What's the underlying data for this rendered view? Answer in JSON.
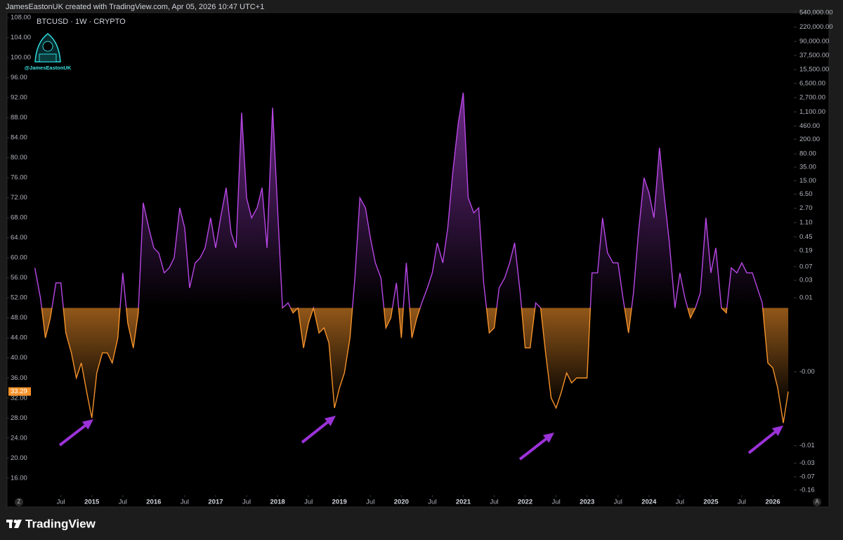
{
  "ui": {
    "header": "JamesEastonUK created with TradingView.com, Apr 05, 2026 10:47 UTC+1",
    "brand": "TradingView",
    "watermark": "@JamesEastonUK",
    "scale_buttons": [
      "Z",
      "A"
    ]
  },
  "chart_data": {
    "type": "line",
    "title": "BTCUSD · 1W · CRYPTO",
    "x": [
      2014.08,
      2014.17,
      2014.25,
      2014.33,
      2014.42,
      2014.5,
      2014.58,
      2014.67,
      2014.75,
      2014.83,
      2014.92,
      2015.0,
      2015.08,
      2015.17,
      2015.25,
      2015.33,
      2015.42,
      2015.5,
      2015.58,
      2015.67,
      2015.75,
      2015.83,
      2015.92,
      2016.0,
      2016.08,
      2016.17,
      2016.25,
      2016.33,
      2016.42,
      2016.5,
      2016.58,
      2016.67,
      2016.75,
      2016.83,
      2016.92,
      2017.0,
      2017.08,
      2017.17,
      2017.25,
      2017.33,
      2017.42,
      2017.5,
      2017.58,
      2017.67,
      2017.75,
      2017.83,
      2017.92,
      2018.0,
      2018.08,
      2018.17,
      2018.25,
      2018.33,
      2018.42,
      2018.5,
      2018.58,
      2018.67,
      2018.75,
      2018.83,
      2018.92,
      2019.0,
      2019.08,
      2019.17,
      2019.25,
      2019.33,
      2019.42,
      2019.5,
      2019.58,
      2019.67,
      2019.75,
      2019.83,
      2019.92,
      2020.0,
      2020.08,
      2020.17,
      2020.25,
      2020.33,
      2020.42,
      2020.5,
      2020.58,
      2020.67,
      2020.75,
      2020.83,
      2020.92,
      2021.0,
      2021.08,
      2021.17,
      2021.25,
      2021.33,
      2021.42,
      2021.5,
      2021.58,
      2021.67,
      2021.75,
      2021.83,
      2021.92,
      2022.0,
      2022.08,
      2022.17,
      2022.25,
      2022.33,
      2022.42,
      2022.5,
      2022.58,
      2022.67,
      2022.75,
      2022.83,
      2022.92,
      2023.0,
      2023.08,
      2023.17,
      2023.25,
      2023.33,
      2023.42,
      2023.5,
      2023.58,
      2023.67,
      2023.75,
      2023.83,
      2023.92,
      2024.0,
      2024.08,
      2024.17,
      2024.25,
      2024.33,
      2024.42,
      2024.5,
      2024.58,
      2024.67,
      2024.75,
      2024.83,
      2024.92,
      2025.0,
      2025.08,
      2025.17,
      2025.25,
      2025.33,
      2025.42,
      2025.5,
      2025.58,
      2025.67,
      2025.75,
      2025.83,
      2025.92,
      2026.0,
      2026.08,
      2026.17,
      2026.25
    ],
    "values": [
      58,
      52,
      44,
      48,
      55,
      55,
      45,
      41,
      36,
      39,
      33,
      28,
      37,
      41,
      41,
      39,
      44,
      57,
      47,
      42,
      49,
      71,
      66,
      62,
      61,
      57,
      58,
      60,
      70,
      66,
      54,
      59,
      60,
      62,
      68,
      62,
      68,
      74,
      65,
      62,
      89,
      72,
      68,
      70,
      74,
      62,
      90,
      70,
      50,
      51,
      49,
      50,
      42,
      47,
      50,
      45,
      46,
      43,
      30,
      34,
      37,
      44,
      56,
      72,
      70,
      64,
      59,
      56,
      46,
      48,
      55,
      44,
      59,
      44,
      48,
      51,
      54,
      57,
      63,
      59,
      66,
      77,
      87,
      93,
      72,
      69,
      70,
      55,
      45,
      46,
      54,
      56,
      59,
      63,
      53,
      42,
      42,
      51,
      50,
      41,
      32,
      30,
      33,
      37,
      35,
      36,
      36,
      36,
      57,
      57,
      68,
      61,
      59,
      59,
      52,
      45,
      53,
      65,
      76,
      73,
      68,
      82,
      72,
      63,
      50,
      57,
      52,
      48,
      50,
      53,
      68,
      57,
      62,
      50,
      49,
      58,
      57,
      59,
      57,
      57,
      54,
      51,
      39,
      38,
      34,
      27,
      33.29
    ],
    "threshold": 50,
    "colors": {
      "above": "#b847e6",
      "below": "#f5922a"
    },
    "grid": false,
    "xlim": [
      2013.63,
      2026.34
    ],
    "xticks": [
      {
        "value": 2014.5,
        "label": "Jul"
      },
      2015,
      {
        "value": 2015.5,
        "label": "Jul"
      },
      2016,
      {
        "value": 2016.5,
        "label": "Jul"
      },
      2017,
      {
        "value": 2017.5,
        "label": "Jul"
      },
      2018,
      {
        "value": 2018.5,
        "label": "Jul"
      },
      2019,
      {
        "value": 2019.5,
        "label": "Jul"
      },
      2020,
      {
        "value": 2020.5,
        "label": "Jul"
      },
      2021,
      {
        "value": 2021.5,
        "label": "Jul"
      },
      2022,
      {
        "value": 2022.5,
        "label": "Jul"
      },
      2023,
      {
        "value": 2023.5,
        "label": "Jul"
      },
      2024,
      {
        "value": 2024.5,
        "label": "Jul"
      },
      2025,
      {
        "value": 2025.5,
        "label": "Jul"
      },
      2026
    ],
    "ylim": [
      12.6,
      109
    ],
    "yticks": [
      {
        "value": 16,
        "label": "16.00"
      },
      {
        "value": 20,
        "label": "20.00"
      },
      {
        "value": 24,
        "label": "24.00"
      },
      {
        "value": 28,
        "label": "28.00"
      },
      {
        "value": 32,
        "label": "32.00"
      },
      {
        "value": 36,
        "label": "36.00"
      },
      {
        "value": 40,
        "label": "40.00"
      },
      {
        "value": 44,
        "label": "44.00"
      },
      {
        "value": 48,
        "label": "48.00"
      },
      {
        "value": 52,
        "label": "52.00"
      },
      {
        "value": 56,
        "label": "56.00"
      },
      {
        "value": 60,
        "label": "60.00"
      },
      {
        "value": 64,
        "label": "64.00"
      },
      {
        "value": 68,
        "label": "68.00"
      },
      {
        "value": 72,
        "label": "72.00"
      },
      {
        "value": 76,
        "label": "76.00"
      },
      {
        "value": 80,
        "label": "80.00"
      },
      {
        "value": 84,
        "label": "84.00"
      },
      {
        "value": 88,
        "label": "88.00"
      },
      {
        "value": 92,
        "label": "92.00"
      },
      {
        "value": 96,
        "label": "96.00"
      },
      {
        "value": 100,
        "label": "100.00"
      },
      {
        "value": 104,
        "label": "104.00"
      },
      {
        "value": 108,
        "label": "108.00"
      }
    ],
    "y2scale": "symlog",
    "y2lim": [
      -0.22,
      540000
    ],
    "y2ticks": [
      {
        "value": 540000,
        "label": "540,000.00"
      },
      {
        "value": 220000,
        "label": "220,000.00"
      },
      {
        "value": 90000,
        "label": "90,000.00"
      },
      {
        "value": 37500,
        "label": "37,500.00"
      },
      {
        "value": 15500,
        "label": "15,500.00"
      },
      {
        "value": 6500,
        "label": "6,500.00"
      },
      {
        "value": 2700,
        "label": "2,700.00"
      },
      {
        "value": 1100,
        "label": "1,100.00"
      },
      {
        "value": 460,
        "label": "460.00"
      },
      {
        "value": 200,
        "label": "200.00"
      },
      {
        "value": 80,
        "label": "80.00"
      },
      {
        "value": 35,
        "label": "35.00"
      },
      {
        "value": 15,
        "label": "15.00"
      },
      {
        "value": 6.5,
        "label": "6.50"
      },
      {
        "value": 2.7,
        "label": "2.70"
      },
      {
        "value": 1.1,
        "label": "1.10"
      },
      {
        "value": 0.45,
        "label": "0.45"
      },
      {
        "value": 0.19,
        "label": "0.19"
      },
      {
        "value": 0.07,
        "label": "0.07"
      },
      {
        "value": 0.03,
        "label": "0.03"
      },
      {
        "value": 0.01,
        "label": "0.01"
      },
      {
        "value": 0,
        "label": "-0.00"
      },
      {
        "value": -0.01,
        "label": "-0.01"
      },
      {
        "value": -0.03,
        "label": "-0.03"
      },
      {
        "value": -0.07,
        "label": "-0.07"
      },
      {
        "value": -0.16,
        "label": "-0.16"
      }
    ]
  }
}
